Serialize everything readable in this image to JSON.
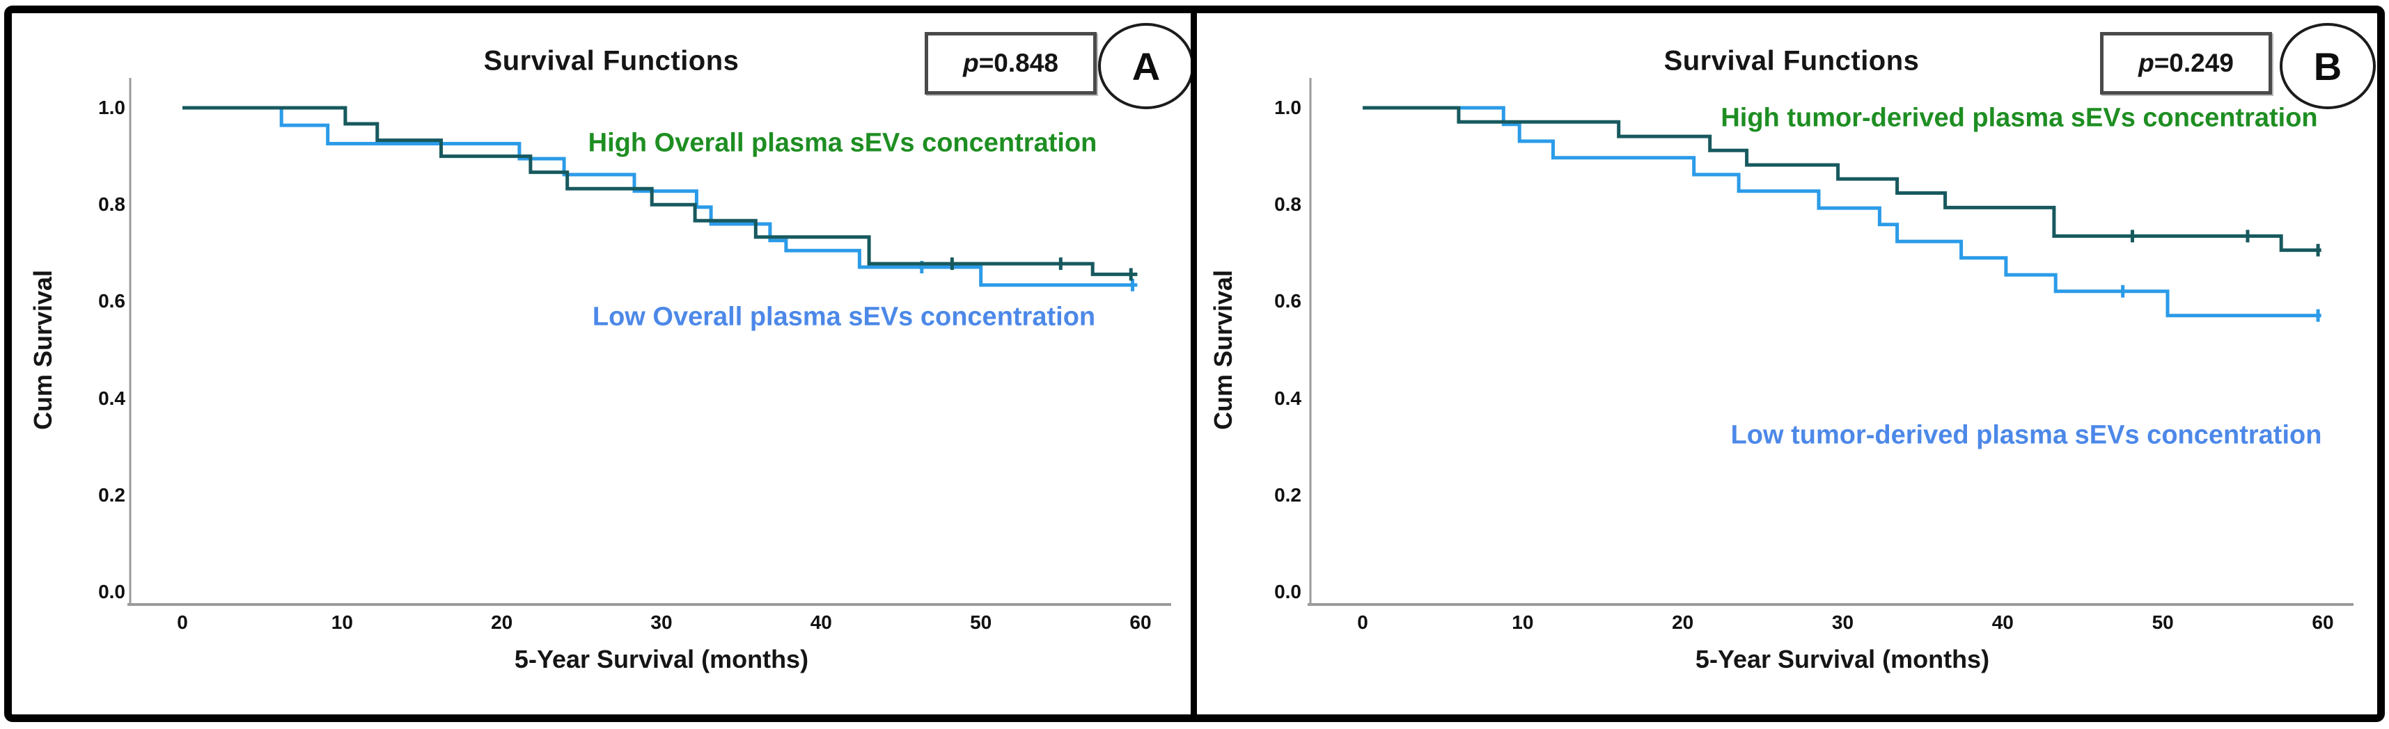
{
  "figure": {
    "background": "#ffffff",
    "border_color": "#000000",
    "divider_color": "#000000",
    "curve_color_high": "#17595E",
    "curve_color_low": "#2B9BE8",
    "label_color_high": "#1E8E22",
    "label_color_low": "#4C88E8"
  },
  "panels": [
    {
      "id": "A",
      "letter": "A",
      "title": "Survival Functions",
      "p_symbol": "p",
      "p_value": "=0.848",
      "x_axis": {
        "title": "5-Year Survival (months)",
        "tick_labels": [
          "0",
          "10",
          "20",
          "30",
          "40",
          "50",
          "60"
        ]
      },
      "y_axis": {
        "title": "Cum Survival",
        "tick_labels": [
          "1.0",
          "0.8",
          "0.6",
          "0.4",
          "0.2",
          "0.0"
        ]
      },
      "legend": [
        {
          "text": "High Overall plasma sEVs concentration",
          "color": "#1E8E22"
        },
        {
          "text": "Low Overall plasma sEVs concentration",
          "color": "#4C88E8"
        }
      ]
    },
    {
      "id": "B",
      "letter": "B",
      "title": "Survival Functions",
      "p_symbol": "p",
      "p_value": "=0.249",
      "x_axis": {
        "title": "5-Year Survival (months)",
        "tick_labels": [
          "0",
          "10",
          "20",
          "30",
          "40",
          "50",
          "60"
        ]
      },
      "y_axis": {
        "title": "Cum Survival",
        "tick_labels": [
          "1.0",
          "0.8",
          "0.6",
          "0.4",
          "0.2",
          "0.0"
        ]
      },
      "legend": [
        {
          "text": "High tumor-derived plasma sEVs concentration",
          "color": "#1E8E22"
        },
        {
          "text": "Low tumor-derived plasma sEVs concentration",
          "color": "#4C88E8"
        }
      ]
    }
  ],
  "chart_data": [
    {
      "type": "line",
      "subtype": "kaplan-meier-step",
      "panel": "A",
      "title": "Survival Functions",
      "p_value_label": "p=0.848",
      "xlabel": "5-Year Survival (months)",
      "ylabel": "Cum Survival",
      "xlim": [
        0,
        63
      ],
      "ylim": [
        0.0,
        1.05
      ],
      "xticks": [
        0,
        10,
        20,
        30,
        40,
        50,
        60
      ],
      "yticks": [
        1.0,
        0.8,
        0.6,
        0.4,
        0.2,
        0.0
      ],
      "grid": false,
      "legend_position": "inline-annotations",
      "series": [
        {
          "name": "High Overall plasma sEVs concentration",
          "color": "#17595E",
          "points": [
            [
              0,
              1.0
            ],
            [
              10.2,
              0.967
            ],
            [
              12.2,
              0.933
            ],
            [
              16.2,
              0.9
            ],
            [
              21.8,
              0.867
            ],
            [
              24.1,
              0.833
            ],
            [
              29.4,
              0.8
            ],
            [
              32.1,
              0.767
            ],
            [
              35.9,
              0.733
            ],
            [
              43.0,
              0.678
            ],
            [
              57.0,
              0.656
            ],
            [
              59.8,
              0.656
            ]
          ],
          "censors": [
            [
              48.2,
              0.678
            ],
            [
              55.0,
              0.678
            ],
            [
              59.4,
              0.656
            ]
          ]
        },
        {
          "name": "Low Overall plasma sEVs concentration",
          "color": "#2B9BE8",
          "points": [
            [
              0,
              1.0
            ],
            [
              6.2,
              0.964
            ],
            [
              9.1,
              0.926
            ],
            [
              21.1,
              0.895
            ],
            [
              23.9,
              0.862
            ],
            [
              28.3,
              0.828
            ],
            [
              32.2,
              0.795
            ],
            [
              33.1,
              0.76
            ],
            [
              36.8,
              0.726
            ],
            [
              37.8,
              0.705
            ],
            [
              42.4,
              0.671
            ],
            [
              50.0,
              0.634
            ],
            [
              59.8,
              0.634
            ]
          ],
          "censors": [
            [
              46.3,
              0.671
            ],
            [
              59.5,
              0.634
            ]
          ]
        }
      ]
    },
    {
      "type": "line",
      "subtype": "kaplan-meier-step",
      "panel": "B",
      "title": "Survival Functions",
      "p_value_label": "p=0.249",
      "xlabel": "5-Year Survival (months)",
      "ylabel": "Cum Survival",
      "xlim": [
        0,
        63
      ],
      "ylim": [
        0.0,
        1.05
      ],
      "xticks": [
        0,
        10,
        20,
        30,
        40,
        50,
        60
      ],
      "yticks": [
        1.0,
        0.8,
        0.6,
        0.4,
        0.2,
        0.0
      ],
      "grid": false,
      "legend_position": "inline-annotations",
      "series": [
        {
          "name": "High tumor-derived plasma sEVs concentration",
          "color": "#17595E",
          "points": [
            [
              0,
              1.0
            ],
            [
              6.0,
              0.971
            ],
            [
              16.0,
              0.941
            ],
            [
              21.7,
              0.912
            ],
            [
              24.0,
              0.882
            ],
            [
              29.7,
              0.853
            ],
            [
              33.4,
              0.824
            ],
            [
              36.4,
              0.794
            ],
            [
              43.2,
              0.735
            ],
            [
              57.4,
              0.706
            ],
            [
              59.9,
              0.706
            ]
          ],
          "censors": [
            [
              48.1,
              0.735
            ],
            [
              55.3,
              0.735
            ],
            [
              59.7,
              0.706
            ]
          ]
        },
        {
          "name": "Low tumor-derived plasma sEVs concentration",
          "color": "#2B9BE8",
          "points": [
            [
              0,
              1.0
            ],
            [
              8.8,
              0.966
            ],
            [
              9.8,
              0.931
            ],
            [
              11.9,
              0.897
            ],
            [
              20.7,
              0.862
            ],
            [
              23.5,
              0.828
            ],
            [
              28.5,
              0.793
            ],
            [
              32.3,
              0.759
            ],
            [
              33.4,
              0.724
            ],
            [
              37.4,
              0.69
            ],
            [
              40.2,
              0.655
            ],
            [
              43.3,
              0.621
            ],
            [
              50.3,
              0.571
            ],
            [
              59.9,
              0.571
            ]
          ],
          "censors": [
            [
              47.5,
              0.621
            ],
            [
              59.7,
              0.571
            ]
          ]
        }
      ]
    }
  ]
}
